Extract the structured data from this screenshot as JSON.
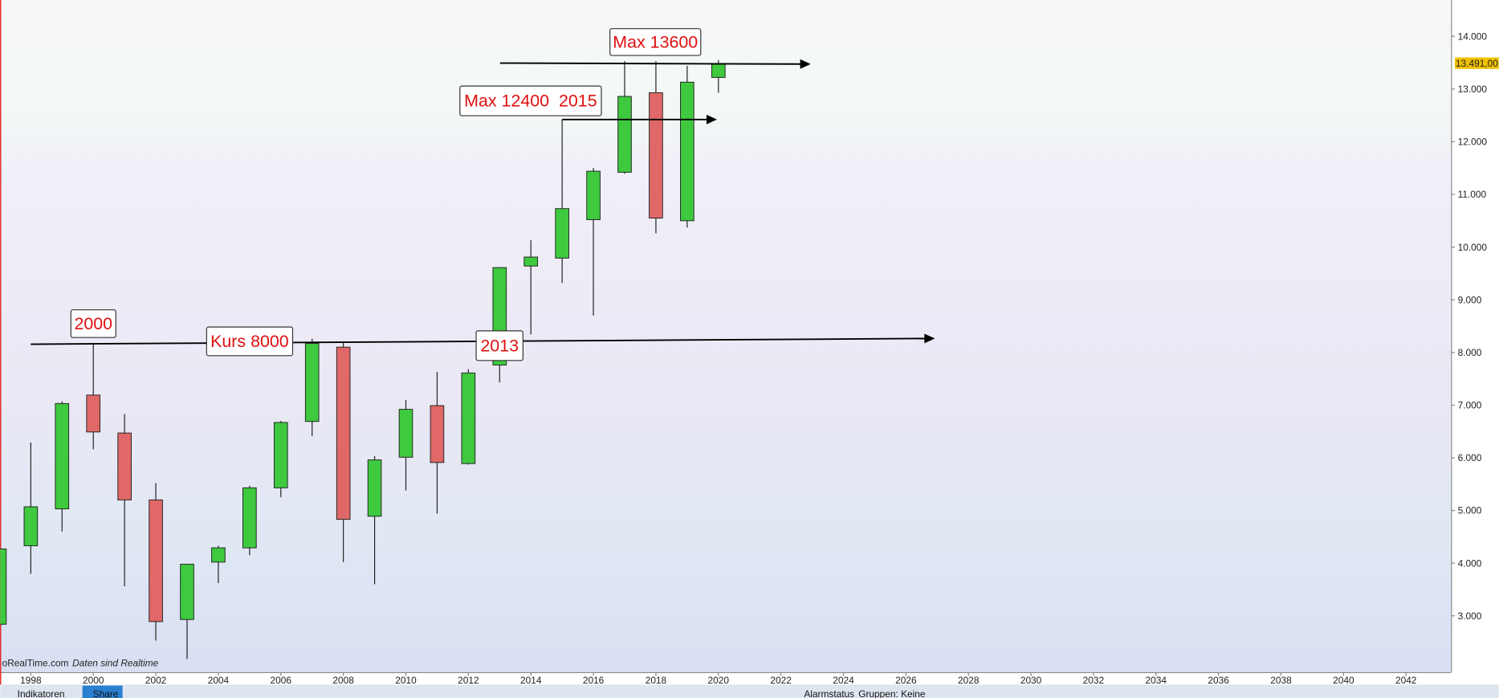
{
  "chart_data": {
    "type": "candlestick",
    "x": [
      1997,
      1998,
      1999,
      2000,
      2001,
      2002,
      2003,
      2004,
      2005,
      2006,
      2007,
      2008,
      2009,
      2010,
      2011,
      2012,
      2013,
      2014,
      2015,
      2016,
      2017,
      2018,
      2019,
      2020
    ],
    "open": [
      2840,
      4330,
      5030,
      7190,
      6470,
      5200,
      2930,
      4020,
      4290,
      5430,
      6690,
      8100,
      4890,
      6010,
      6990,
      5890,
      7760,
      9640,
      9790,
      10520,
      11420,
      12930,
      10500,
      13220
    ],
    "high": [
      4300,
      6290,
      7070,
      8160,
      6830,
      5520,
      3980,
      4330,
      5470,
      6700,
      8260,
      8190,
      6030,
      7100,
      7630,
      7680,
      9610,
      10130,
      12420,
      11500,
      13530,
      13530,
      13440,
      13550
    ],
    "low": [
      2800,
      3800,
      4600,
      6160,
      3560,
      2530,
      2180,
      3620,
      4150,
      5250,
      6410,
      4020,
      3600,
      5380,
      4940,
      5870,
      7430,
      8340,
      9320,
      8700,
      11390,
      10260,
      10370,
      12930
    ],
    "close": [
      4270,
      5070,
      7030,
      6490,
      5200,
      2890,
      3980,
      4290,
      5430,
      6670,
      8170,
      4830,
      5960,
      6920,
      5910,
      7610,
      9610,
      9810,
      10730,
      11440,
      12860,
      10550,
      13130,
      13470
    ],
    "up_color": "#3ec93e",
    "down_color": "#e06868",
    "xlim": [
      1997.02,
      2043.44
    ],
    "ylim": [
      1930,
      14690
    ],
    "xticks": [
      1998,
      2000,
      2002,
      2004,
      2006,
      2008,
      2010,
      2012,
      2014,
      2016,
      2018,
      2020,
      2022,
      2024,
      2026,
      2028,
      2030,
      2032,
      2034,
      2036,
      2038,
      2040,
      2042
    ],
    "yticks": [
      {
        "value": 3000,
        "label": "3.000"
      },
      {
        "value": 4000,
        "label": "4.000"
      },
      {
        "value": 5000,
        "label": "5.000"
      },
      {
        "value": 6000,
        "label": "6.000"
      },
      {
        "value": 7000,
        "label": "7.000"
      },
      {
        "value": 8000,
        "label": "8.000"
      },
      {
        "value": 9000,
        "label": "9.000"
      },
      {
        "value": 10000,
        "label": "10.000"
      },
      {
        "value": 11000,
        "label": "11.000"
      },
      {
        "value": 12000,
        "label": "12.000"
      },
      {
        "value": 13000,
        "label": "13.000"
      },
      {
        "value": 14000,
        "label": "14.000"
      }
    ],
    "last_price": {
      "value": 13491,
      "label": "13.491,00"
    },
    "annotations": [
      "Max 13600",
      "Max 12400  2015",
      "2000",
      "Kurs 8000",
      "2013"
    ],
    "source": "oRealTime.com",
    "source_note": "Daten sind Realtime"
  },
  "toolbar": {
    "items": [
      "Indikatoren",
      "Share",
      "Alarmstatus",
      "Gruppen: Keine"
    ]
  }
}
